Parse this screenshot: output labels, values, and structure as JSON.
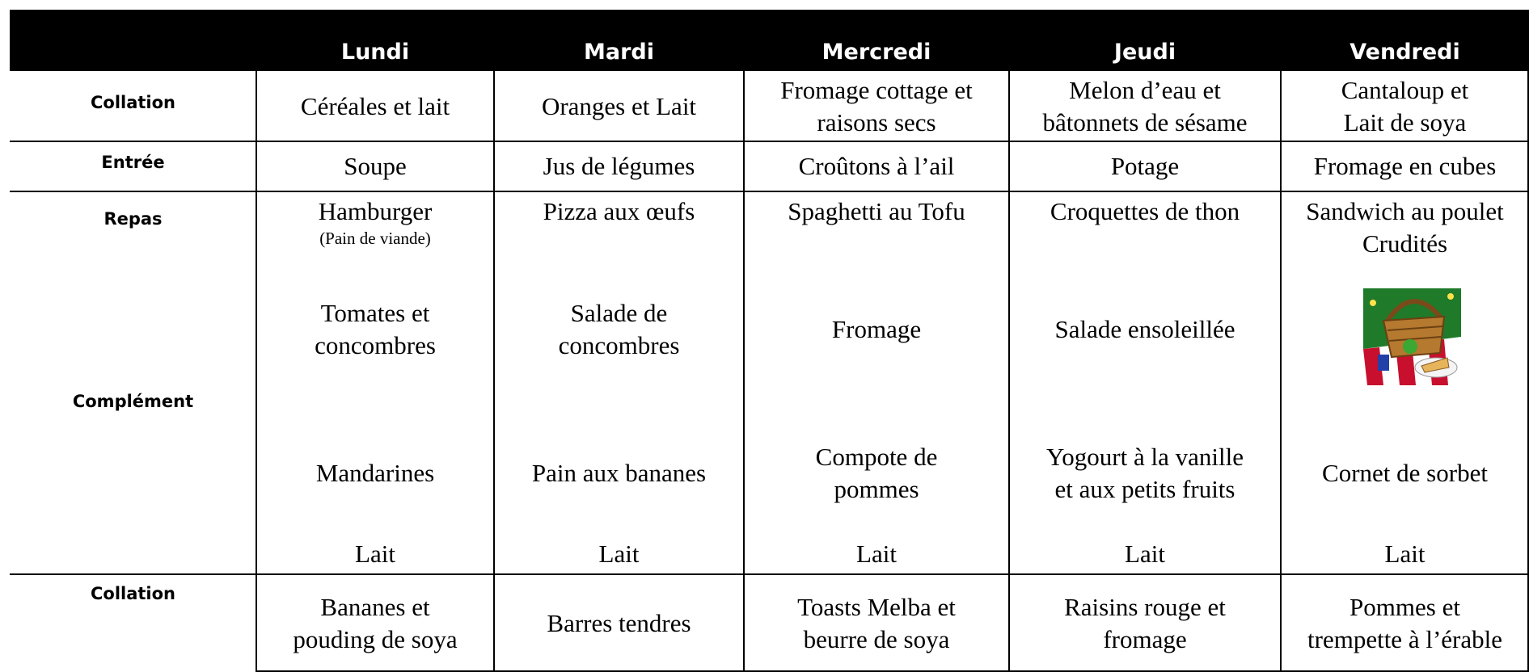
{
  "table": {
    "days": [
      "Lundi",
      "Mardi",
      "Mercredi",
      "Jeudi",
      "Vendredi"
    ],
    "collation_matin": {
      "label": "Collation",
      "cells": [
        [
          "Céréales et lait"
        ],
        [
          "Oranges et Lait"
        ],
        [
          "Fromage cottage et",
          "raisons secs"
        ],
        [
          "Melon d’eau et",
          "bâtonnets de sésame"
        ],
        [
          "Cantaloup et",
          "Lait de soya"
        ]
      ]
    },
    "entree": {
      "label": "Entrée",
      "cells": [
        [
          "Soupe"
        ],
        [
          "Jus de légumes"
        ],
        [
          "Croûtons à l’ail"
        ],
        [
          "Potage"
        ],
        [
          "Fromage en cubes"
        ]
      ]
    },
    "repas": {
      "labels": [
        "Repas",
        "Complément"
      ],
      "cells": [
        {
          "plat": [
            "Hamburger"
          ],
          "note": "(Pain de viande)",
          "accompagnement": [
            "Tomates et",
            "concombres"
          ],
          "dessert": [
            "Mandarines"
          ],
          "boisson": "Lait"
        },
        {
          "plat": [
            "Pizza aux œufs"
          ],
          "accompagnement": [
            "Salade de",
            "concombres"
          ],
          "dessert": [
            "Pain aux bananes"
          ],
          "boisson": "Lait"
        },
        {
          "plat": [
            "Spaghetti au Tofu"
          ],
          "accompagnement": [
            "Fromage"
          ],
          "dessert": [
            "Compote de",
            "pommes"
          ],
          "boisson": "Lait"
        },
        {
          "plat": [
            "Croquettes de thon"
          ],
          "accompagnement": [
            "Salade ensoleillée"
          ],
          "dessert": [
            "Yogourt à la vanille",
            "et aux petits fruits"
          ],
          "boisson": "Lait"
        },
        {
          "plat": [
            "Sandwich au poulet",
            "Crudités"
          ],
          "dessert": [
            "Cornet de sorbet"
          ],
          "boisson": "Lait"
        }
      ]
    },
    "collation_pm": {
      "label": "Collation",
      "cells": [
        [
          "Bananes et",
          "pouding de soya"
        ],
        [
          "Barres tendres"
        ],
        [
          "Toasts Melba et",
          "beurre de soya"
        ],
        [
          "Raisins rouge et",
          "fromage"
        ],
        [
          "Pommes et",
          "trempette à l’érable"
        ]
      ]
    }
  }
}
